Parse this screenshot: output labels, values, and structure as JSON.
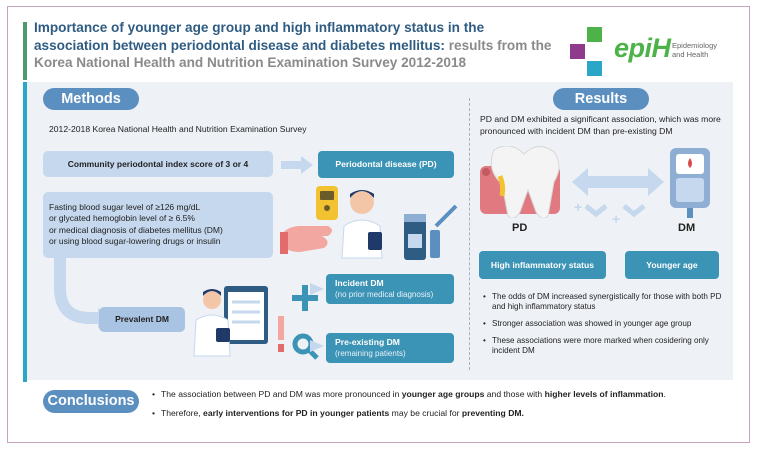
{
  "title": {
    "line_main": "Importance of younger age group and high inflammatory status in the association between periodontal disease and diabetes mellitus:",
    "line_sub": " results from the Korea National Health and Nutrition Examination Survey 2012-2018"
  },
  "logo": {
    "wordmark": "epiH",
    "tag_line1": "Epidemiology",
    "tag_line2": "and Health",
    "colors": [
      "#4db348",
      "#8e3b8e",
      "#2aa6c6"
    ]
  },
  "methods": {
    "header": "Methods",
    "intro": "2012-2018 Korea National Health and Nutrition Examination Survey",
    "cpi_criteria": "Community periodontal index score of 3 or 4",
    "pd_label": "Periodontal disease (PD)",
    "dm_criteria": [
      "Fasting blood sugar level of ≥126 mg/dL",
      "or glycated hemoglobin level of ≥ 6.5%",
      "or medical diagnosis of diabetes mellitus (DM)",
      "or using blood sugar-lowering drugs or insulin"
    ],
    "prevalent_dm": "Prevalent DM",
    "incident_dm_title": "Incident DM",
    "incident_dm_note": "(no prior medical diagnosis)",
    "preexisting_dm_title": "Pre-existing DM",
    "preexisting_dm_note": "(remaining patients)"
  },
  "results": {
    "header": "Results",
    "summary": "PD and DM exhibited a significant association, which was more pronounced with incident DM than pre-existing DM",
    "pd_label": "PD",
    "dm_label": "DM",
    "high_inflammatory": "High inflammatory status",
    "younger_age": "Younger age",
    "bullets": [
      "The odds of DM increased synergistically for those with both PD and high inflammatory status",
      "Stronger association was showed in younger age group",
      "These associations were more marked when cosidering only incident DM"
    ]
  },
  "conclusions": {
    "header": "Conclusions",
    "b1_pre": "The association between PD and DM was more pronounced in ",
    "b1_bold1": "younger age groups",
    "b1_mid": " and those with ",
    "b1_bold2": "higher levels of inflammation",
    "b1_post": ".",
    "b2_pre": "Therefore, ",
    "b2_bold1": "early interventions for PD in younger patients",
    "b2_mid": " may be crucial for ",
    "b2_bold2": "preventing DM."
  }
}
